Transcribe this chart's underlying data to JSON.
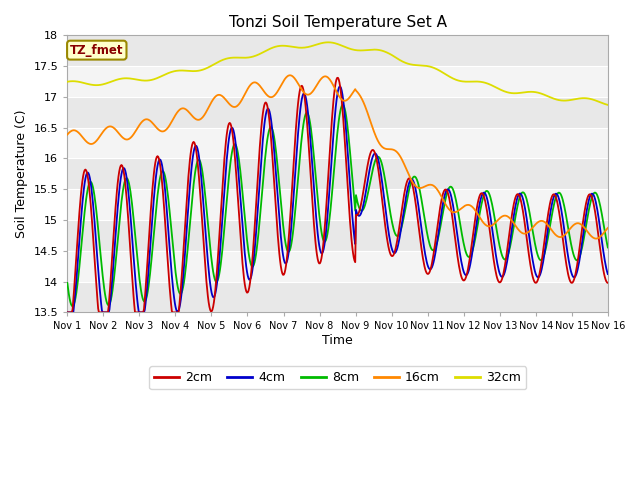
{
  "title": "Tonzi Soil Temperature Set A",
  "xlabel": "Time",
  "ylabel": "Soil Temperature (C)",
  "ylim": [
    13.5,
    18.0
  ],
  "n_days": 15,
  "xtick_labels": [
    "Nov 1",
    "Nov 2",
    "Nov 3",
    "Nov 4",
    "Nov 5",
    "Nov 6",
    "Nov 7",
    "Nov 8",
    "Nov 9",
    "Nov 10",
    "Nov 11",
    "Nov 12",
    "Nov 13",
    "Nov 14",
    "Nov 15",
    "Nov 16"
  ],
  "colors": {
    "2cm": "#cc0000",
    "4cm": "#0000cc",
    "8cm": "#00bb00",
    "16cm": "#ff8800",
    "32cm": "#dddd00"
  },
  "annotation_text": "TZ_fmet",
  "annotation_bg": "#ffffcc",
  "annotation_border": "#998800",
  "annotation_fg": "#880000",
  "yticks": [
    13.5,
    14.0,
    14.5,
    15.0,
    15.5,
    16.0,
    16.5,
    17.0,
    17.5,
    18.0
  ],
  "fig_facecolor": "#ffffff",
  "plot_facecolor": "#ffffff",
  "band_colors": [
    "#e8e8e8",
    "#f4f4f4"
  ]
}
